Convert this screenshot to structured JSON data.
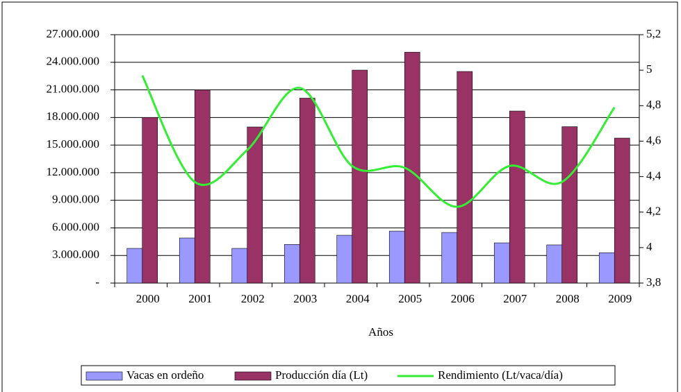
{
  "chart_data": {
    "type": "bar-line",
    "x_label": "Años",
    "categories": [
      "2000",
      "2001",
      "2002",
      "2003",
      "2004",
      "2005",
      "2006",
      "2007",
      "2008",
      "2009"
    ],
    "series": [
      {
        "name": "Vacas en ordeño",
        "type": "bar",
        "color": "#9999ff",
        "values": [
          3770000,
          4900000,
          3770000,
          4200000,
          5200000,
          5650000,
          5500000,
          4370000,
          4150000,
          3300000
        ]
      },
      {
        "name": "Producción día (Lt)",
        "type": "bar",
        "color": "#993366",
        "values": [
          18000000,
          21000000,
          16970000,
          20100000,
          23150000,
          25100000,
          23000000,
          18700000,
          17000000,
          15760000
        ]
      },
      {
        "name": "Rendimiento (Lt/vaca/día)",
        "type": "line",
        "axis": "y2",
        "color": "#33ee33",
        "values": [
          4.97,
          4.37,
          4.55,
          4.9,
          4.46,
          4.45,
          4.23,
          4.46,
          4.37,
          4.79
        ]
      }
    ],
    "ylim": [
      0,
      27000000
    ],
    "yticks": [
      {
        "value": 0,
        "label": "-"
      },
      {
        "value": 3000000,
        "label": "3.000.000"
      },
      {
        "value": 6000000,
        "label": "6.000.000"
      },
      {
        "value": 9000000,
        "label": "9.000.000"
      },
      {
        "value": 12000000,
        "label": "12.000.000"
      },
      {
        "value": 15000000,
        "label": "15.000.000"
      },
      {
        "value": 18000000,
        "label": "18.000.000"
      },
      {
        "value": 21000000,
        "label": "21.000.000"
      },
      {
        "value": 24000000,
        "label": "24.000.000"
      },
      {
        "value": 27000000,
        "label": "27.000.000"
      }
    ],
    "y2lim": [
      3.8,
      5.2
    ],
    "y2ticks": [
      {
        "value": 3.8,
        "label": "3,8"
      },
      4,
      {
        "value": 4.2,
        "label": "4,2"
      },
      {
        "value": 4.4,
        "label": "4,4"
      },
      {
        "value": 4.6,
        "label": "4,6"
      },
      {
        "value": 4.8,
        "label": "4,8"
      },
      5,
      {
        "value": 5.2,
        "label": "5,2"
      }
    ],
    "grid": true,
    "legend": "bottom"
  }
}
